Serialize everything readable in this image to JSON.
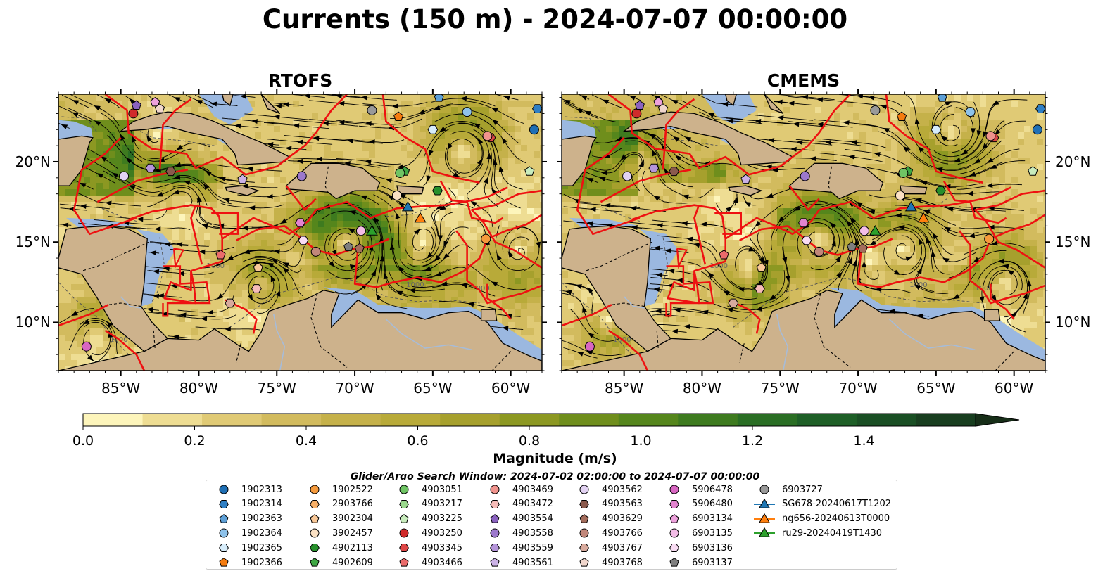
{
  "title": "Currents (150 m) - 2024-07-07 00:00:00",
  "panels": [
    {
      "title": "RTOFS"
    },
    {
      "title": "CMEMS"
    }
  ],
  "axes": {
    "lon_labels": [
      "85°W",
      "80°W",
      "75°W",
      "70°W",
      "65°W",
      "60°W"
    ],
    "lat_labels": [
      "20°N",
      "15°N",
      "10°N"
    ],
    "lon_range": [
      -89,
      -58
    ],
    "lat_range": [
      7,
      24.2
    ]
  },
  "contour_labels": [
    "1000",
    "1000",
    "1000",
    "1000"
  ],
  "colorbar": {
    "label": "Magnitude (m/s)",
    "ticks": [
      "0.0",
      "0.2",
      "0.4",
      "0.6",
      "0.8",
      "1.0",
      "1.2",
      "1.4"
    ],
    "range": [
      0,
      1.6
    ],
    "extend": "max",
    "colors": [
      "#fdf5bb",
      "#eedd93",
      "#e0ca75",
      "#d2bb5e",
      "#c5b14a",
      "#b8aa39",
      "#a6a02d",
      "#8c9822",
      "#6f8e1c",
      "#55861c",
      "#3e7b1f",
      "#2a6e24",
      "#1e5f27",
      "#1a4f24",
      "#183e1f",
      "#172e18"
    ]
  },
  "search_window": "Glider/Argo Search Window: 2024-07-02 02:00:00 to 2024-07-07 00:00:00",
  "colors": {
    "ocean_shallow": "#9bb8e0",
    "land": "#cdb28c",
    "boundary": "#ee1111",
    "streamline": "#000000"
  },
  "legend": [
    {
      "label": "1902313",
      "marker": "circle",
      "color": "#1f6fb4"
    },
    {
      "label": "1902314",
      "marker": "hexagon",
      "color": "#2f7fc4"
    },
    {
      "label": "1902363",
      "marker": "pentagon",
      "color": "#5d9fd6"
    },
    {
      "label": "1902364",
      "marker": "circle",
      "color": "#8ec2ea"
    },
    {
      "label": "1902365",
      "marker": "hexagon",
      "color": "#d6ecfa"
    },
    {
      "label": "1902366",
      "marker": "pentagon",
      "color": "#f57c0f"
    },
    {
      "label": "1902522",
      "marker": "circle",
      "color": "#f59a3c"
    },
    {
      "label": "2903766",
      "marker": "hexagon",
      "color": "#f7b069"
    },
    {
      "label": "3902304",
      "marker": "pentagon",
      "color": "#f9c898"
    },
    {
      "label": "3902457",
      "marker": "circle",
      "color": "#fbe1c4"
    },
    {
      "label": "4902113",
      "marker": "hexagon",
      "color": "#268f2b"
    },
    {
      "label": "4902609",
      "marker": "pentagon",
      "color": "#3ea743"
    },
    {
      "label": "4903051",
      "marker": "circle",
      "color": "#6fc464"
    },
    {
      "label": "4903217",
      "marker": "hexagon",
      "color": "#9ad88d"
    },
    {
      "label": "4903225",
      "marker": "pentagon",
      "color": "#c8ecbd"
    },
    {
      "label": "4903250",
      "marker": "circle",
      "color": "#d02b2b"
    },
    {
      "label": "4903345",
      "marker": "hexagon",
      "color": "#de4646"
    },
    {
      "label": "4903466",
      "marker": "pentagon",
      "color": "#ea6b6b"
    },
    {
      "label": "4903469",
      "marker": "circle",
      "color": "#f0938d"
    },
    {
      "label": "4903472",
      "marker": "hexagon",
      "color": "#f6bcb8"
    },
    {
      "label": "4903554",
      "marker": "pentagon",
      "color": "#8a62bf"
    },
    {
      "label": "4903558",
      "marker": "circle",
      "color": "#9c78cc"
    },
    {
      "label": "4903559",
      "marker": "hexagon",
      "color": "#b595da"
    },
    {
      "label": "4903561",
      "marker": "pentagon",
      "color": "#cbb2e6"
    },
    {
      "label": "4903562",
      "marker": "circle",
      "color": "#e2d2f2"
    },
    {
      "label": "4903563",
      "marker": "hexagon",
      "color": "#8b5a4d"
    },
    {
      "label": "4903629",
      "marker": "pentagon",
      "color": "#a36c5c"
    },
    {
      "label": "4903766",
      "marker": "circle",
      "color": "#c1877a"
    },
    {
      "label": "4903767",
      "marker": "hexagon",
      "color": "#d8aa9d"
    },
    {
      "label": "4903768",
      "marker": "pentagon",
      "color": "#f0d6cc"
    },
    {
      "label": "5906478",
      "marker": "circle",
      "color": "#d866c2"
    },
    {
      "label": "5906480",
      "marker": "hexagon",
      "color": "#e284cf"
    },
    {
      "label": "6903134",
      "marker": "pentagon",
      "color": "#eda1dc"
    },
    {
      "label": "6903135",
      "marker": "circle",
      "color": "#f3bde7"
    },
    {
      "label": "6903136",
      "marker": "hexagon",
      "color": "#f8dbf2"
    },
    {
      "label": "6903137",
      "marker": "pentagon",
      "color": "#7f7f7f"
    },
    {
      "label": "6903727",
      "marker": "circle",
      "color": "#999999"
    },
    {
      "label": "SG678-20240617T1202",
      "marker": "triangle",
      "color": "#1f77b4"
    },
    {
      "label": "ng656-20240613T0000",
      "marker": "triangle",
      "color": "#ff7f0e"
    },
    {
      "label": "ru29-20240419T1430",
      "marker": "triangle",
      "color": "#2ca02c"
    }
  ],
  "floats": [
    {
      "label": "1902313",
      "lon": -58.5,
      "lat": 22.0
    },
    {
      "label": "1902314",
      "lon": -58.3,
      "lat": 23.3
    },
    {
      "label": "1902363",
      "lon": -64.6,
      "lat": 24.0
    },
    {
      "label": "1902364",
      "lon": -62.8,
      "lat": 23.1
    },
    {
      "label": "1902365",
      "lon": -65.0,
      "lat": 22.0
    },
    {
      "label": "1902366",
      "lon": -67.2,
      "lat": 22.8
    },
    {
      "label": "1902522",
      "lon": -61.6,
      "lat": 15.2
    },
    {
      "label": "3902304",
      "lon": -76.2,
      "lat": 13.4
    },
    {
      "label": "3902457",
      "lon": -67.3,
      "lat": 17.9
    },
    {
      "label": "4902113",
      "lon": -64.7,
      "lat": 18.2
    },
    {
      "label": "4902609",
      "lon": -66.8,
      "lat": 19.4
    },
    {
      "label": "4903051",
      "lon": -67.1,
      "lat": 19.3
    },
    {
      "label": "4903225",
      "lon": -58.8,
      "lat": 19.4
    },
    {
      "label": "4903250",
      "lon": -84.2,
      "lat": 23.0
    },
    {
      "label": "4903345",
      "lon": -61.3,
      "lat": 21.5
    },
    {
      "label": "4903466",
      "lon": -78.6,
      "lat": 14.2
    },
    {
      "label": "4903469",
      "lon": -61.5,
      "lat": 21.6
    },
    {
      "label": "4903472",
      "lon": -76.3,
      "lat": 12.1
    },
    {
      "label": "4903554",
      "lon": -84.0,
      "lat": 23.5
    },
    {
      "label": "4903558",
      "lon": -73.4,
      "lat": 19.1
    },
    {
      "label": "4903559",
      "lon": -83.1,
      "lat": 19.6
    },
    {
      "label": "4903561",
      "lon": -77.2,
      "lat": 18.9
    },
    {
      "label": "4903562",
      "lon": -84.8,
      "lat": 19.1
    },
    {
      "label": "4903563",
      "lon": -81.8,
      "lat": 19.4
    },
    {
      "label": "4903629",
      "lon": -69.7,
      "lat": 14.6
    },
    {
      "label": "4903766",
      "lon": -72.5,
      "lat": 14.4
    },
    {
      "label": "4903767",
      "lon": -78.0,
      "lat": 11.2
    },
    {
      "label": "5906478",
      "lon": -87.2,
      "lat": 8.5
    },
    {
      "label": "5906480",
      "lon": -73.5,
      "lat": 16.2
    },
    {
      "label": "6903134",
      "lon": -82.8,
      "lat": 23.7
    },
    {
      "label": "6903135",
      "lon": -69.6,
      "lat": 15.7
    },
    {
      "label": "6903136",
      "lon": -73.3,
      "lat": 15.1
    },
    {
      "label": "6903137",
      "lon": -70.4,
      "lat": 14.7
    },
    {
      "label": "6903727",
      "lon": -68.9,
      "lat": 23.2
    },
    {
      "label": "4903768",
      "lon": -82.5,
      "lat": 23.3
    }
  ],
  "gliders": [
    {
      "label": "SG678-20240617T1202",
      "lon": -66.6,
      "lat": 17.2
    },
    {
      "label": "ng656-20240613T0000",
      "lon": -65.8,
      "lat": 16.5
    },
    {
      "label": "ru29-20240419T1430",
      "lon": -68.9,
      "lat": 15.7
    }
  ]
}
